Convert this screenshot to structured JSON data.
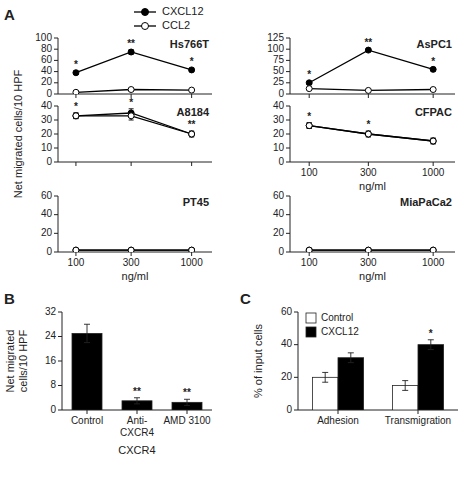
{
  "chart_data": [
    {
      "type": "line",
      "title": "Hs766T",
      "annotations": [
        {
          "text": "A"
        },
        {
          "text": "*",
          "x": 100,
          "series": "CXCL12"
        },
        {
          "text": "**",
          "x": 300,
          "series": "CXCL12"
        },
        {
          "text": "*",
          "x": 1000,
          "series": "CXCL12"
        }
      ],
      "x": [
        100,
        300,
        1000
      ],
      "series": [
        {
          "name": "CXCL12",
          "color": "#000000",
          "marker": "circle",
          "values": [
            38,
            75,
            43
          ],
          "errors": [
            3,
            4,
            3
          ]
        },
        {
          "name": "CCL2",
          "color": "#000000",
          "marker": "open-circle",
          "values": [
            3,
            8,
            7
          ],
          "errors": [
            1,
            2,
            1
          ]
        }
      ],
      "log": "x",
      "xlim": [
        70,
        1500
      ],
      "xticks": [
        100,
        300,
        1000
      ],
      "ylim": [
        0,
        100
      ],
      "yticks": [
        0,
        20,
        40,
        60,
        80,
        100
      ],
      "tick_labels": "y",
      "legend": "upper right"
    },
    {
      "type": "line",
      "title": "A8184",
      "y_label": "Net migrated cells/10 HPF",
      "annotations": [
        {
          "text": "*",
          "x": 100,
          "series": "CXCL12"
        },
        {
          "text": "*",
          "x": 300,
          "series": "CXCL12"
        },
        {
          "text": "**",
          "x": 1000,
          "series": "CXCL12"
        }
      ],
      "x": [
        100,
        300,
        1000
      ],
      "series": [
        {
          "name": "CXCL12",
          "color": "#000000",
          "marker": "circle",
          "values": [
            33,
            35,
            20
          ],
          "errors": [
            2,
            3,
            2
          ]
        },
        {
          "name": "CCL2",
          "color": "#000000",
          "marker": "open-circle",
          "values": [
            33,
            33,
            20
          ],
          "errors": [
            2,
            3,
            2
          ]
        }
      ],
      "log": "x",
      "xlim": [
        70,
        1500
      ],
      "xticks": [
        100,
        300,
        1000
      ],
      "ylim": [
        0,
        40
      ],
      "yticks": [
        0,
        10,
        20,
        30,
        40
      ],
      "tick_labels": "y"
    },
    {
      "type": "line",
      "title": "PT45",
      "x_label": "ng/ml",
      "x": [
        100,
        300,
        1000
      ],
      "series": [
        {
          "name": "CXCL12",
          "color": "#000000",
          "marker": "circle",
          "values": [
            2,
            2,
            2
          ],
          "errors": [
            0.5,
            0.5,
            0.5
          ]
        },
        {
          "name": "CCL2",
          "color": "#000000",
          "marker": "open-circle",
          "values": [
            2,
            2,
            2
          ],
          "errors": [
            0.5,
            0.5,
            0.5
          ]
        }
      ],
      "log": "x",
      "xlim": [
        70,
        1500
      ],
      "xticks": [
        100,
        300,
        1000
      ],
      "ylim": [
        0,
        60
      ],
      "yticks": [
        0,
        20,
        40,
        60
      ]
    },
    {
      "type": "line",
      "title": "AsPC1",
      "annotations": [
        {
          "text": "*",
          "x": 100,
          "series": "CXCL12"
        },
        {
          "text": "**",
          "x": 300,
          "series": "CXCL12"
        },
        {
          "text": "*",
          "x": 1000,
          "series": "CXCL12"
        }
      ],
      "x": [
        100,
        300,
        1000
      ],
      "series": [
        {
          "name": "CXCL12",
          "color": "#000000",
          "marker": "circle",
          "values": [
            25,
            98,
            55
          ],
          "errors": [
            3,
            3,
            4
          ]
        },
        {
          "name": "CCL2",
          "color": "#000000",
          "marker": "open-circle",
          "values": [
            12,
            8,
            10
          ],
          "errors": [
            2,
            2,
            2
          ]
        }
      ],
      "log": "x",
      "xlim": [
        70,
        1500
      ],
      "xticks": [
        100,
        300,
        1000
      ],
      "ylim": [
        0,
        125
      ],
      "yticks": [
        0,
        25,
        50,
        75,
        100,
        125
      ],
      "tick_labels": "y"
    },
    {
      "type": "line",
      "title": "CFPAC",
      "x_label": "ng/ml",
      "annotations": [
        {
          "text": "*",
          "x": 100,
          "series": "CXCL12"
        },
        {
          "text": "*",
          "x": 300,
          "series": "CXCL12"
        }
      ],
      "x": [
        100,
        300,
        1000
      ],
      "series": [
        {
          "name": "CXCL12",
          "color": "#000000",
          "marker": "circle",
          "values": [
            26,
            20,
            15
          ],
          "errors": [
            2,
            2,
            2
          ]
        },
        {
          "name": "CCL2",
          "color": "#000000",
          "marker": "open-circle",
          "values": [
            26,
            20,
            15
          ],
          "errors": [
            2,
            2,
            2
          ]
        }
      ],
      "log": "x",
      "xlim": [
        70,
        1500
      ],
      "xticks": [
        100,
        300,
        1000
      ],
      "ylim": [
        0,
        40
      ],
      "yticks": [
        0,
        10,
        20,
        30,
        40
      ]
    },
    {
      "type": "line",
      "title": "MiaPaCa2",
      "x_label": "ng/ml",
      "x": [
        100,
        300,
        1000
      ],
      "series": [
        {
          "name": "CXCL12",
          "color": "#000000",
          "marker": "circle",
          "values": [
            2,
            2,
            2
          ],
          "errors": [
            0.5,
            0.5,
            0.5
          ]
        },
        {
          "name": "CCL2",
          "color": "#000000",
          "marker": "open-circle",
          "values": [
            2,
            2,
            2
          ],
          "errors": [
            0.5,
            0.5,
            0.5
          ]
        }
      ],
      "log": "x",
      "xlim": [
        70,
        1500
      ],
      "xticks": [
        100,
        300,
        1000
      ],
      "ylim": [
        0,
        60
      ],
      "yticks": [
        0,
        20,
        40,
        60
      ]
    },
    {
      "type": "bar",
      "y_label": "Net migrated\ncells/10 HPF",
      "x_label": "CXCR4",
      "annotations": [
        {
          "text": "B"
        },
        {
          "text": "**",
          "x": "Anti-\nCXCR4"
        },
        {
          "text": "**",
          "x": "AMD 3100"
        }
      ],
      "categories": [
        "Control",
        "Anti-\nCXCR4",
        "AMD 3100"
      ],
      "values": [
        25,
        3,
        2.5
      ],
      "errors": [
        3,
        1,
        1
      ],
      "color": "#000000",
      "ylim": [
        0,
        32
      ],
      "yticks": [
        0,
        8,
        16,
        24,
        32
      ]
    },
    {
      "type": "bar",
      "y_label": "% of input cells",
      "annotations": [
        {
          "text": "C"
        },
        {
          "text": "*",
          "x": "Transmigration",
          "series": "CXCL12"
        }
      ],
      "categories": [
        "Adhesion",
        "Transmigration"
      ],
      "series": [
        {
          "name": "Control",
          "color": "#ffffff",
          "values": [
            20,
            15
          ],
          "errors": [
            3,
            3
          ]
        },
        {
          "name": "CXCL12",
          "color": "#000000",
          "values": [
            32,
            40
          ],
          "errors": [
            3,
            3
          ]
        }
      ],
      "ylim": [
        0,
        60
      ],
      "yticks": [
        0,
        20,
        40,
        60
      ],
      "legend": "upper left"
    }
  ]
}
